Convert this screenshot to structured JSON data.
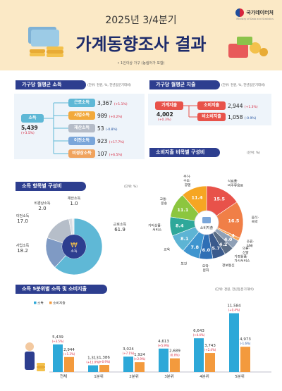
{
  "header": {
    "year_line": "2025년 3/4분기",
    "title": "가계동향조사 결과",
    "note": "• 1인이상 가구 (농림어가 포함)",
    "logo_ko": "국가데이터처",
    "logo_en": "Ministry of Data and Statistics"
  },
  "income_section": {
    "title": "가구당 월평균 소득",
    "unit": "(단위: 천원, %, 전년동분기대비)",
    "total_label": "소득",
    "total_value": "5,439",
    "total_change": "(+3.5%)",
    "items": [
      {
        "label": "근로소득",
        "value": "3,367",
        "change": "(+1.1%)",
        "color": "#5fb8d6",
        "change_color": "#d7263d"
      },
      {
        "label": "사업소득",
        "value": "989",
        "change": "(+0.2%)",
        "color": "#f2a93b",
        "change_color": "#d7263d"
      },
      {
        "label": "재산소득",
        "value": "53",
        "change": "(-0.8%)",
        "color": "#b5bcc8",
        "change_color": "#1f4e9c"
      },
      {
        "label": "이전소득",
        "value": "923",
        "change": "(+17.7%)",
        "color": "#7aa6da",
        "change_color": "#d7263d"
      },
      {
        "label": "비경상소득",
        "value": "107",
        "change": "(+6.5%)",
        "color": "#f0a35e",
        "change_color": "#d7263d"
      }
    ]
  },
  "expense_section": {
    "title": "가구당 월평균 지출",
    "unit": "(단위: 천원, %, 전년동분기대비)",
    "total_label": "가계지출",
    "total_value": "4,002",
    "total_change": "(+0.3%)",
    "items": [
      {
        "label": "소비지출",
        "value": "2,944",
        "change": "(+1.3%)",
        "color": "#e8524a",
        "change_color": "#d7263d"
      },
      {
        "label": "비소비지출",
        "value": "1,058",
        "change": "(-0.9%)",
        "color": "#e8524a",
        "change_color": "#1f4e9c"
      }
    ]
  },
  "income_composition": {
    "title": "소득 항목별 구성비",
    "unit": "(단위: %)",
    "center_label": "소득"
  },
  "consumption_composition": {
    "title": "소비지출 비목별 구성비",
    "unit": "(단위: %)",
    "center_label": "소비지출"
  },
  "quintile_section": {
    "title": "소득 5분위별 소득 및 소비지출",
    "unit": "(단위: 천원, 전년동분기대비)"
  },
  "chart_data": [
    {
      "type": "pie",
      "title": "소득 항목별 구성비",
      "categories": [
        "근로소득",
        "사업소득",
        "이전소득",
        "비경상소득",
        "재산소득"
      ],
      "values": [
        61.9,
        18.2,
        17.0,
        2.0,
        1.0
      ],
      "colors": [
        "#5fb8d6",
        "#7f9ac4",
        "#b6bec9",
        "#d9dde3",
        "#e8ebef"
      ]
    },
    {
      "type": "pie",
      "title": "소비지출 비목별 구성비",
      "categories": [
        "식료품·비주류음료",
        "음식·숙박",
        "주류·담배",
        "의류·신발",
        "가정용품·가사서비스",
        "정보통신",
        "오락·문화",
        "보건",
        "교육",
        "기타상품·서비스",
        "교통·운송",
        "주거·수도·광열"
      ],
      "values": [
        15.5,
        16.5,
        1.4,
        4.0,
        4.2,
        5.7,
        6.0,
        7.8,
        8.1,
        8.4,
        11.1,
        11.4
      ],
      "colors": [
        "#e8524a",
        "#f07f47",
        "#f6a55a",
        "#8fa0b6",
        "#5a6d86",
        "#3a5a8c",
        "#2f6fb5",
        "#3f95cf",
        "#5db4d4",
        "#2ea89a",
        "#8cc63f",
        "#f6a623"
      ]
    },
    {
      "type": "bar",
      "title": "소득 5분위별 소득 및 소비지출",
      "categories": [
        "전체",
        "1분위",
        "2분위",
        "3분위",
        "4분위",
        "5분위"
      ],
      "series": [
        {
          "name": "소득",
          "values": [
            5439,
            1313,
            3024,
            4613,
            6643,
            11584
          ],
          "changes": [
            "(+3.5%)",
            "(+11.0%)",
            "(+7.1%)",
            "(+5.9%)",
            "(+4.4%)",
            "(+0.4%)"
          ],
          "color": "#2da8d8"
        },
        {
          "name": "소비지출",
          "values": [
            2944,
            1386,
            1924,
            2689,
            3743,
            4973
          ],
          "changes": [
            "(+1.3%)",
            "(+0.9%)",
            "(+2.9%)",
            "(0.0%)",
            "(+2.4%)",
            "(-1.6%)"
          ],
          "color": "#f39a3d"
        }
      ],
      "ylim": [
        0,
        12500
      ]
    }
  ]
}
